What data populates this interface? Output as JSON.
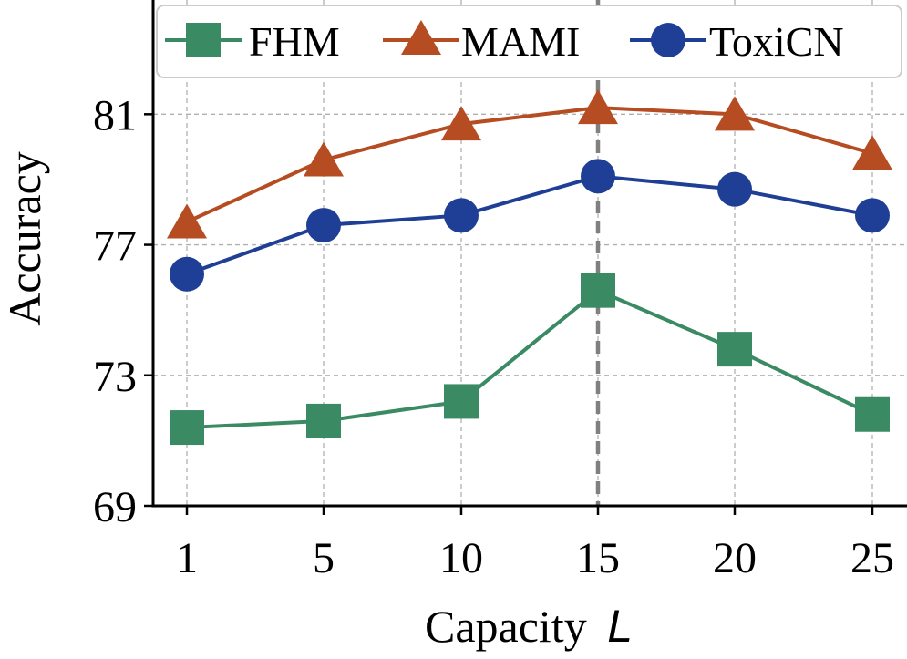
{
  "chart_data": {
    "type": "line",
    "title": "",
    "xlabel": "Capacity",
    "xlabel_var": "L",
    "ylabel": "Accuracy",
    "categories": [
      "1",
      "5",
      "10",
      "15",
      "20",
      "25"
    ],
    "ylim": [
      69,
      84.5
    ],
    "yticks": [
      "69",
      "73",
      "77",
      "81"
    ],
    "grid": true,
    "legend_position": "top",
    "highlight_x": "15",
    "series": [
      {
        "name": "FHM",
        "marker": "square",
        "color": "#3a8a64",
        "values": [
          71.4,
          71.6,
          72.2,
          75.6,
          73.8,
          71.8
        ]
      },
      {
        "name": "MAMI",
        "marker": "triangle",
        "color": "#b64d22",
        "values": [
          77.7,
          79.6,
          80.7,
          81.2,
          81.0,
          79.8
        ]
      },
      {
        "name": "ToxiCN",
        "marker": "circle",
        "color": "#1f3f96",
        "values": [
          76.1,
          77.6,
          77.9,
          79.1,
          78.7,
          77.9
        ]
      }
    ]
  }
}
